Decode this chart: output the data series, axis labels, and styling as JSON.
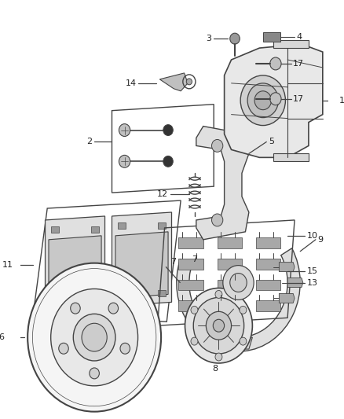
{
  "bg_color": "#ffffff",
  "line_color": "#444444",
  "text_color": "#222222",
  "fig_width": 4.38,
  "fig_height": 5.33,
  "dpi": 100
}
